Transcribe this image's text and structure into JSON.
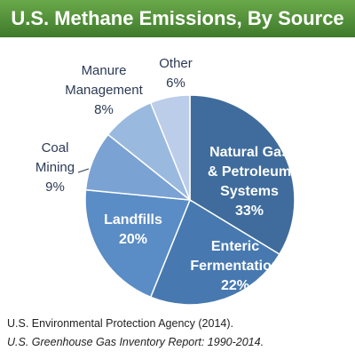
{
  "chart_data": {
    "type": "pie",
    "title": "U.S. Methane Emissions, By Source",
    "categories": [
      "Natural Gas & Petroleum Systems",
      "Enteric Fermentation",
      "Landfills",
      "Coal Mining",
      "Manure Management",
      "Other"
    ],
    "values": [
      33,
      22,
      20,
      9,
      8,
      6
    ],
    "value_labels": [
      "33%",
      "22%",
      "20%",
      "9%",
      "8%",
      "6%"
    ],
    "colors": [
      "#3f6c9c",
      "#4779b0",
      "#5a8cc5",
      "#7aa2d3",
      "#9ab9df",
      "#bccde9"
    ],
    "source_lines": [
      "U.S. Environmental Protection Agency (2014).",
      "U.S. Greenhouse Gas Inventory Report: 1990-2014."
    ]
  }
}
